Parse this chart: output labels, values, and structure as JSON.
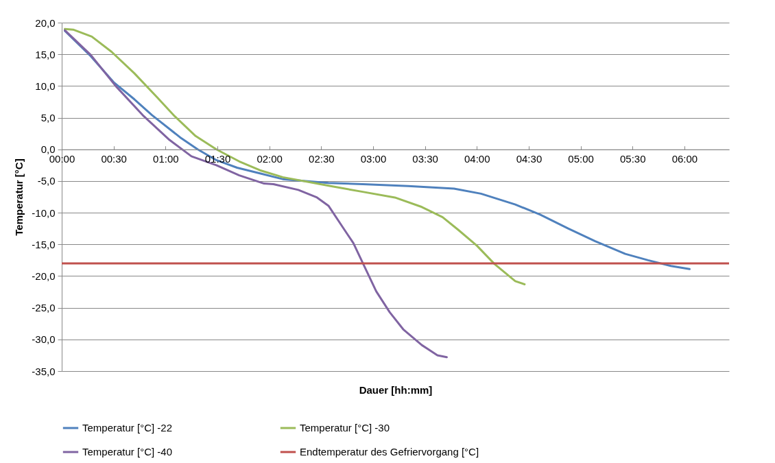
{
  "chart_data": {
    "type": "line",
    "xlabel": "Dauer [hh:mm]",
    "ylabel": "Temperatur [°C]",
    "xlim": [
      0,
      6.43
    ],
    "ylim": [
      -35,
      20
    ],
    "xticks": [
      {
        "value": 0,
        "label": "00:00"
      },
      {
        "value": 0.5,
        "label": "00:30"
      },
      {
        "value": 1,
        "label": "01:00"
      },
      {
        "value": 1.5,
        "label": "01:30"
      },
      {
        "value": 2,
        "label": "02:00"
      },
      {
        "value": 2.5,
        "label": "02:30"
      },
      {
        "value": 3,
        "label": "03:00"
      },
      {
        "value": 3.5,
        "label": "03:30"
      },
      {
        "value": 4,
        "label": "04:00"
      },
      {
        "value": 4.5,
        "label": "04:30"
      },
      {
        "value": 5,
        "label": "05:00"
      },
      {
        "value": 5.5,
        "label": "05:30"
      },
      {
        "value": 6,
        "label": "06:00"
      }
    ],
    "yticks": [
      {
        "value": 20,
        "label": "20,0"
      },
      {
        "value": 15,
        "label": "15,0"
      },
      {
        "value": 10,
        "label": "10,0"
      },
      {
        "value": 5,
        "label": "5,0"
      },
      {
        "value": 0,
        "label": "0,0"
      },
      {
        "value": -5,
        "label": "-5,0"
      },
      {
        "value": -10,
        "label": "-10,0"
      },
      {
        "value": -15,
        "label": "-15,0"
      },
      {
        "value": -20,
        "label": "-20,0"
      },
      {
        "value": -25,
        "label": "-25,0"
      },
      {
        "value": -30,
        "label": "-30,0"
      },
      {
        "value": -35,
        "label": "-35,0"
      }
    ],
    "grid": "y",
    "legend": "bottom",
    "marker": "none",
    "line_style": "solid",
    "series": [
      {
        "name": "Temperatur [°C] -22",
        "color": "#4f81bd",
        "x": [
          0.03,
          0.28,
          0.5,
          0.7,
          0.87,
          1.14,
          1.31,
          1.49,
          1.69,
          1.91,
          2.13,
          2.57,
          2.9,
          3.34,
          3.78,
          4.04,
          4.37,
          4.61,
          4.88,
          5.14,
          5.43,
          5.65,
          5.87,
          6.05
        ],
        "values": [
          18.7,
          14.7,
          10.6,
          7.9,
          5.4,
          1.9,
          0,
          -1.7,
          -2.9,
          -3.8,
          -4.7,
          -5.3,
          -5.5,
          -5.8,
          -6.2,
          -7.0,
          -8.7,
          -10.3,
          -12.5,
          -14.5,
          -16.5,
          -17.5,
          -18.4,
          -18.9
        ]
      },
      {
        "name": "Temperatur [°C] -30",
        "color": "#9bbb59",
        "x": [
          0.03,
          0.11,
          0.29,
          0.48,
          0.7,
          0.92,
          1.09,
          1.29,
          1.49,
          1.71,
          1.91,
          2.13,
          2.59,
          2.9,
          3.21,
          3.47,
          3.67,
          3.82,
          4.0,
          4.17,
          4.37,
          4.46
        ],
        "values": [
          19.0,
          18.9,
          17.8,
          15.4,
          12.0,
          8.2,
          5.2,
          2.1,
          0,
          -1.9,
          -3.3,
          -4.4,
          -5.8,
          -6.7,
          -7.6,
          -9.1,
          -10.7,
          -12.7,
          -15.2,
          -18.1,
          -20.8,
          -21.3
        ]
      },
      {
        "name": "Temperatur [°C] -40",
        "color": "#8064a2",
        "x": [
          0.03,
          0.28,
          0.52,
          0.78,
          1.03,
          1.25,
          1.49,
          1.71,
          1.95,
          2.04,
          2.28,
          2.46,
          2.57,
          2.7,
          2.81,
          2.9,
          3.03,
          3.16,
          3.29,
          3.47,
          3.62,
          3.71
        ],
        "values": [
          18.8,
          14.9,
          10.0,
          5.4,
          1.6,
          -1.1,
          -2.5,
          -4.1,
          -5.4,
          -5.5,
          -6.4,
          -7.6,
          -8.9,
          -12.1,
          -14.8,
          -17.9,
          -22.4,
          -25.7,
          -28.4,
          -30.9,
          -32.5,
          -32.8
        ]
      }
    ],
    "ref_lines": [
      {
        "axis": "y",
        "value": -18,
        "label": "Endtemperatur des Gefriervorgang [°C]",
        "color": "#c0504d",
        "line_style": "solid"
      }
    ]
  }
}
